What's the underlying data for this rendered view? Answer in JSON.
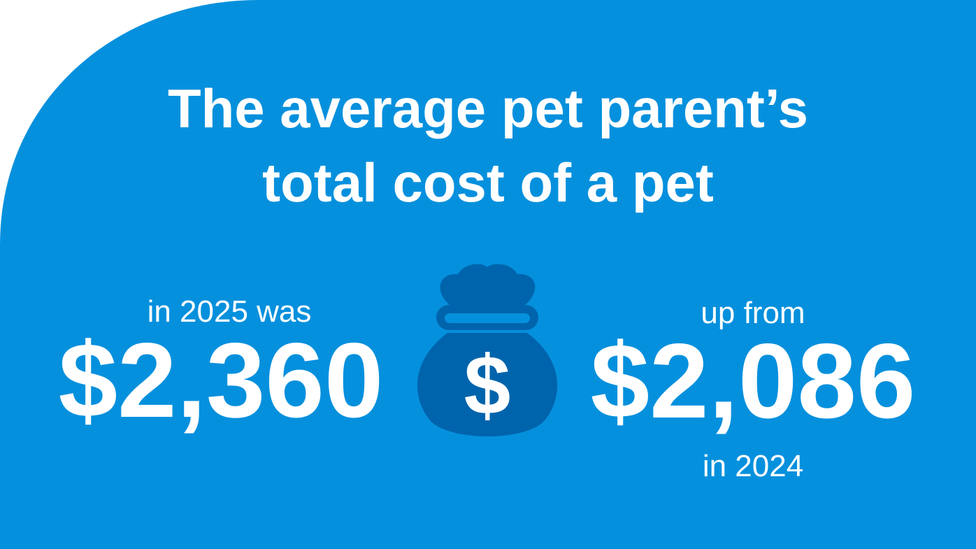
{
  "title_lines": [
    "The average pet parent’s",
    "total cost of a pet"
  ],
  "current": {
    "label": "in 2025 was",
    "amount": "$2,360"
  },
  "previous": {
    "label_before": "up from",
    "amount": "$2,086",
    "label_after": "in 2024"
  },
  "icon": {
    "symbol": "$"
  }
}
